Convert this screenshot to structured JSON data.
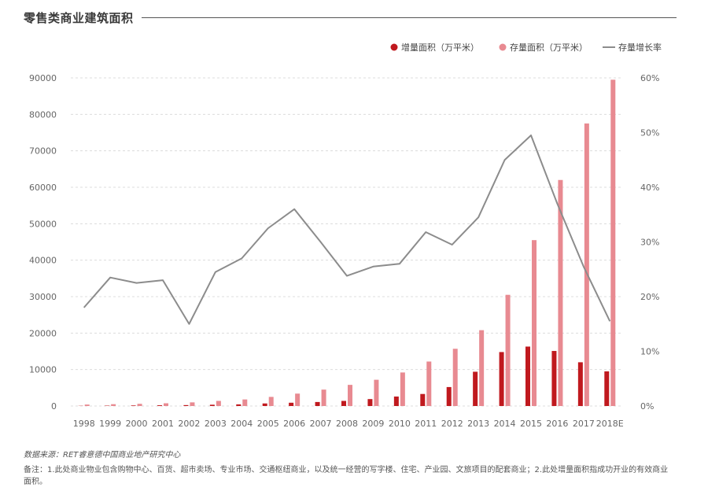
{
  "title": "零售类商业建筑面积",
  "legend": {
    "increment": "增量面积（万平米）",
    "stock": "存量面积（万平米）",
    "growth": "存量增长率"
  },
  "colors": {
    "increment": "#c0191e",
    "stock": "#e88a91",
    "growth": "#8c8c8c",
    "grid": "#dcdcdc",
    "axis_text": "#666666"
  },
  "chart_data": {
    "type": "bar",
    "title": "零售类商业建筑面积",
    "categories": [
      "1998",
      "1999",
      "2000",
      "2001",
      "2002",
      "2003",
      "2004",
      "2005",
      "2006",
      "2007",
      "2008",
      "2009",
      "2010",
      "2011",
      "2012",
      "2013",
      "2014",
      "2015",
      "2016",
      "2017",
      "2018E"
    ],
    "series": [
      {
        "name": "增量面积（万平米）",
        "type": "bar",
        "axis": "left",
        "values": [
          50,
          100,
          150,
          200,
          250,
          350,
          450,
          700,
          900,
          1100,
          1400,
          1900,
          2600,
          3300,
          5200,
          9400,
          14800,
          16300,
          15100,
          12000,
          9500
        ]
      },
      {
        "name": "存量面积（万平米）",
        "type": "bar",
        "axis": "left",
        "values": [
          400,
          500,
          600,
          750,
          1000,
          1400,
          1800,
          2500,
          3400,
          4500,
          5800,
          7200,
          9200,
          12200,
          15700,
          20800,
          30500,
          45500,
          62000,
          77500,
          89500
        ]
      },
      {
        "name": "存量增长率",
        "type": "line",
        "axis": "right",
        "values": [
          18,
          23.5,
          22.5,
          23,
          15,
          24.5,
          27,
          32.5,
          36,
          30,
          23.8,
          25.5,
          26,
          31.8,
          29.5,
          34.5,
          45,
          49.5,
          37,
          25.5,
          15.5
        ]
      }
    ],
    "yleft": {
      "min": 0,
      "max": 90000,
      "ticks": [
        "0",
        "10000",
        "20000",
        "30000",
        "40000",
        "50000",
        "60000",
        "70000",
        "80000",
        "90000"
      ]
    },
    "yright": {
      "min": 0,
      "max": 60,
      "ticks": [
        "0%",
        "10%",
        "20%",
        "30%",
        "40%",
        "50%",
        "60%"
      ]
    },
    "grid": "horizontal-dashed",
    "legend_position": "top-right"
  },
  "footer": {
    "source": "数据来源：RET睿意德中国商业地产研究中心",
    "note": "备注：1.此处商业物业包含购物中心、百货、超市卖场、专业市场、交通枢纽商业，以及统一经营的写字楼、住宅、产业园、文旅项目的配套商业；2.此处增量面积指成功开业的有效商业面积。"
  }
}
